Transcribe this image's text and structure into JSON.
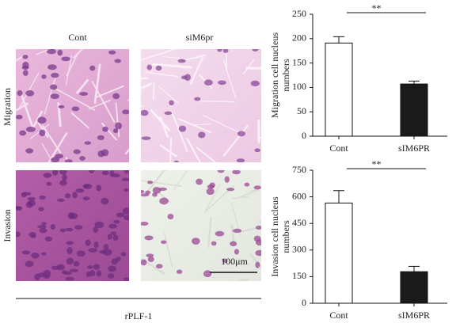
{
  "panels": {
    "columns": [
      "Cont",
      "siM6pr"
    ],
    "rows": [
      "Migration",
      "Invasion"
    ],
    "scale_bar": "100μm",
    "group": "rPLF-1"
  },
  "chart_data": [
    {
      "type": "bar",
      "ylabel": [
        "Migration cell nucleus",
        "numbers"
      ],
      "categories": [
        "Cont",
        "sIM6PR"
      ],
      "values": [
        191,
        107
      ],
      "errors": [
        13,
        6
      ],
      "colors": [
        "#ffffff",
        "#1a1a1a"
      ],
      "ylim": [
        0,
        250
      ],
      "yticks": [
        0,
        50,
        100,
        150,
        200,
        250
      ],
      "annotation": "**"
    },
    {
      "type": "bar",
      "ylabel": [
        "Invasion cell nucleus",
        "numbers"
      ],
      "categories": [
        "Cont",
        "sIM6PR"
      ],
      "values": [
        565,
        178
      ],
      "errors": [
        70,
        30
      ],
      "colors": [
        "#ffffff",
        "#1a1a1a"
      ],
      "ylim": [
        0,
        750
      ],
      "yticks": [
        0,
        150,
        300,
        450,
        600,
        750
      ],
      "annotation": "**"
    }
  ]
}
